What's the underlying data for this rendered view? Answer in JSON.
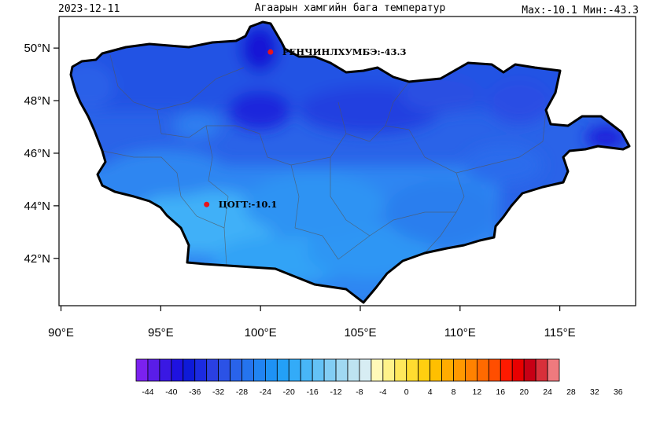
{
  "header": {
    "date": "2023-12-11",
    "title": "Агаарын хамгийн бага температур",
    "extremes": "Max:-10.1 Мин:-43.3"
  },
  "map": {
    "lon_ticks": [
      "90°E",
      "95°E",
      "100°E",
      "105°E",
      "110°E",
      "115°E"
    ],
    "lat_ticks": [
      "50°N",
      "48°N",
      "46°N",
      "44°N",
      "42°N"
    ],
    "lon_values": [
      90,
      95,
      100,
      105,
      110,
      115
    ],
    "lat_values": [
      50,
      48,
      46,
      44,
      42
    ],
    "lon_range": [
      89.9,
      118.8
    ],
    "lat_range": [
      40.2,
      51.2
    ]
  },
  "stations": [
    {
      "name": "РЕНЧИНЛХУМБЭ",
      "value": -43.3,
      "label": "РЕНЧИНЛХУМБЭ:-43.3",
      "lon": 100.5,
      "lat": 49.85,
      "color": "#e8141c"
    },
    {
      "name": "ЦОГТ",
      "value": -10.1,
      "label": "ЦОГТ:-10.1",
      "lon": 97.3,
      "lat": 44.05,
      "color": "#e8141c"
    }
  ],
  "colorbar": {
    "labels": [
      "-44",
      "-40",
      "-36",
      "-32",
      "-28",
      "-24",
      "-20",
      "-16",
      "-12",
      "-8",
      "-4",
      "0",
      "4",
      "8",
      "12",
      "16",
      "20",
      "24",
      "28",
      "32",
      "36"
    ],
    "colors": [
      "#7b21ef",
      "#5a1de8",
      "#3a18e3",
      "#1e12e0",
      "#0e1ad8",
      "#1b2be0",
      "#2a40e2",
      "#2b52e6",
      "#2963ea",
      "#2574ee",
      "#2184f2",
      "#1e92f5",
      "#23a0f7",
      "#33abf8",
      "#48b6f7",
      "#64c2f6",
      "#82cdf4",
      "#a0d8f2",
      "#bde3f1",
      "#d7edf3",
      "#fff9b8",
      "#fff28a",
      "#ffe85c",
      "#ffdc30",
      "#ffcf10",
      "#ffbf00",
      "#ffac00",
      "#ff9900",
      "#ff8200",
      "#ff6a00",
      "#ff4e00",
      "#ff1a00",
      "#e80000",
      "#c70015",
      "#d8303a",
      "#ef7a7e"
    ]
  }
}
